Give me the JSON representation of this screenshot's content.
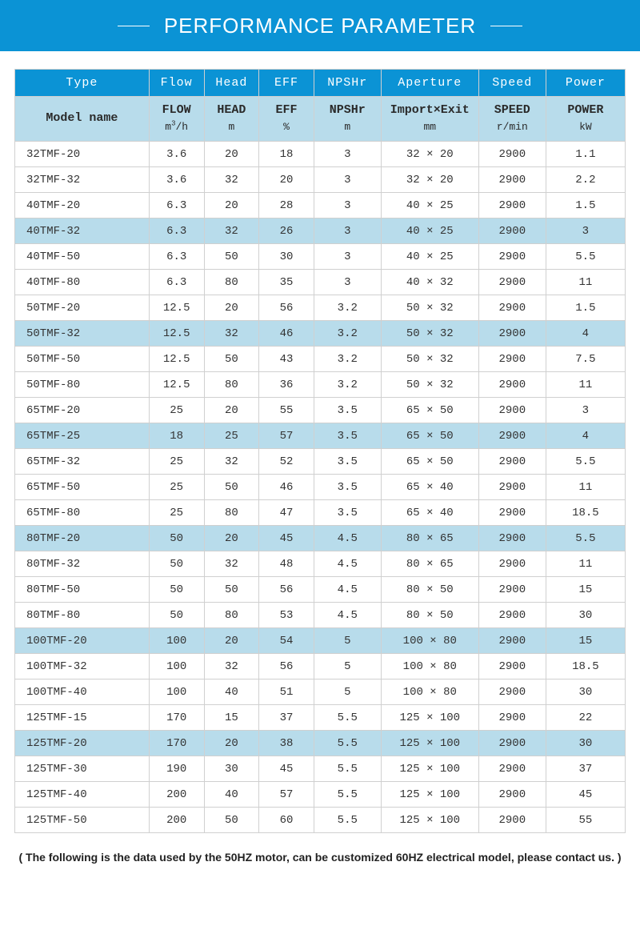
{
  "banner": {
    "title": "PERFORMANCE PARAMETER"
  },
  "table": {
    "header1": [
      "Type",
      "Flow",
      "Head",
      "EFF",
      "NPSHr",
      "Aperture",
      "Speed",
      "Power"
    ],
    "header2": {
      "model": "Model name",
      "flow_label": "FLOW",
      "flow_unit": "m³/h",
      "head_label": "HEAD",
      "head_unit": "m",
      "eff_label": "EFF",
      "eff_unit": "%",
      "npshr_label": "NPSHr",
      "npshr_unit": "m",
      "ap_label": "Import×Exit",
      "ap_unit": "mm",
      "speed_label": "SPEED",
      "speed_unit": "r/min",
      "power_label": "POWER",
      "power_unit": "kW"
    },
    "rows": [
      {
        "model": "32TMF-20",
        "flow": "3.6",
        "head": "20",
        "eff": "18",
        "npshr": "3",
        "ap": "32 × 20",
        "speed": "2900",
        "power": "1.1",
        "hl": false
      },
      {
        "model": "32TMF-32",
        "flow": "3.6",
        "head": "32",
        "eff": "20",
        "npshr": "3",
        "ap": "32 × 20",
        "speed": "2900",
        "power": "2.2",
        "hl": false
      },
      {
        "model": "40TMF-20",
        "flow": "6.3",
        "head": "20",
        "eff": "28",
        "npshr": "3",
        "ap": "40 × 25",
        "speed": "2900",
        "power": "1.5",
        "hl": false
      },
      {
        "model": "40TMF-32",
        "flow": "6.3",
        "head": "32",
        "eff": "26",
        "npshr": "3",
        "ap": "40 × 25",
        "speed": "2900",
        "power": "3",
        "hl": true
      },
      {
        "model": "40TMF-50",
        "flow": "6.3",
        "head": "50",
        "eff": "30",
        "npshr": "3",
        "ap": "40 × 25",
        "speed": "2900",
        "power": "5.5",
        "hl": false
      },
      {
        "model": "40TMF-80",
        "flow": "6.3",
        "head": "80",
        "eff": "35",
        "npshr": "3",
        "ap": "40 × 32",
        "speed": "2900",
        "power": "11",
        "hl": false
      },
      {
        "model": "50TMF-20",
        "flow": "12.5",
        "head": "20",
        "eff": "56",
        "npshr": "3.2",
        "ap": "50 × 32",
        "speed": "2900",
        "power": "1.5",
        "hl": false
      },
      {
        "model": "50TMF-32",
        "flow": "12.5",
        "head": "32",
        "eff": "46",
        "npshr": "3.2",
        "ap": "50 × 32",
        "speed": "2900",
        "power": "4",
        "hl": true
      },
      {
        "model": "50TMF-50",
        "flow": "12.5",
        "head": "50",
        "eff": "43",
        "npshr": "3.2",
        "ap": "50 × 32",
        "speed": "2900",
        "power": "7.5",
        "hl": false
      },
      {
        "model": "50TMF-80",
        "flow": "12.5",
        "head": "80",
        "eff": "36",
        "npshr": "3.2",
        "ap": "50 × 32",
        "speed": "2900",
        "power": "11",
        "hl": false
      },
      {
        "model": "65TMF-20",
        "flow": "25",
        "head": "20",
        "eff": "55",
        "npshr": "3.5",
        "ap": "65 × 50",
        "speed": "2900",
        "power": "3",
        "hl": false
      },
      {
        "model": "65TMF-25",
        "flow": "18",
        "head": "25",
        "eff": "57",
        "npshr": "3.5",
        "ap": "65 × 50",
        "speed": "2900",
        "power": "4",
        "hl": true
      },
      {
        "model": "65TMF-32",
        "flow": "25",
        "head": "32",
        "eff": "52",
        "npshr": "3.5",
        "ap": "65 × 50",
        "speed": "2900",
        "power": "5.5",
        "hl": false
      },
      {
        "model": "65TMF-50",
        "flow": "25",
        "head": "50",
        "eff": "46",
        "npshr": "3.5",
        "ap": "65 × 40",
        "speed": "2900",
        "power": "11",
        "hl": false
      },
      {
        "model": "65TMF-80",
        "flow": "25",
        "head": "80",
        "eff": "47",
        "npshr": "3.5",
        "ap": "65 × 40",
        "speed": "2900",
        "power": "18.5",
        "hl": false
      },
      {
        "model": "80TMF-20",
        "flow": "50",
        "head": "20",
        "eff": "45",
        "npshr": "4.5",
        "ap": "80 × 65",
        "speed": "2900",
        "power": "5.5",
        "hl": true
      },
      {
        "model": "80TMF-32",
        "flow": "50",
        "head": "32",
        "eff": "48",
        "npshr": "4.5",
        "ap": "80 × 65",
        "speed": "2900",
        "power": "11",
        "hl": false
      },
      {
        "model": "80TMF-50",
        "flow": "50",
        "head": "50",
        "eff": "56",
        "npshr": "4.5",
        "ap": "80 × 50",
        "speed": "2900",
        "power": "15",
        "hl": false
      },
      {
        "model": "80TMF-80",
        "flow": "50",
        "head": "80",
        "eff": "53",
        "npshr": "4.5",
        "ap": "80 × 50",
        "speed": "2900",
        "power": "30",
        "hl": false
      },
      {
        "model": "100TMF-20",
        "flow": "100",
        "head": "20",
        "eff": "54",
        "npshr": "5",
        "ap": "100 × 80",
        "speed": "2900",
        "power": "15",
        "hl": true
      },
      {
        "model": "100TMF-32",
        "flow": "100",
        "head": "32",
        "eff": "56",
        "npshr": "5",
        "ap": "100 × 80",
        "speed": "2900",
        "power": "18.5",
        "hl": false
      },
      {
        "model": "100TMF-40",
        "flow": "100",
        "head": "40",
        "eff": "51",
        "npshr": "5",
        "ap": "100 × 80",
        "speed": "2900",
        "power": "30",
        "hl": false
      },
      {
        "model": "125TMF-15",
        "flow": "170",
        "head": "15",
        "eff": "37",
        "npshr": "5.5",
        "ap": "125 × 100",
        "speed": "2900",
        "power": "22",
        "hl": false
      },
      {
        "model": "125TMF-20",
        "flow": "170",
        "head": "20",
        "eff": "38",
        "npshr": "5.5",
        "ap": "125 × 100",
        "speed": "2900",
        "power": "30",
        "hl": true
      },
      {
        "model": "125TMF-30",
        "flow": "190",
        "head": "30",
        "eff": "45",
        "npshr": "5.5",
        "ap": "125 × 100",
        "speed": "2900",
        "power": "37",
        "hl": false
      },
      {
        "model": "125TMF-40",
        "flow": "200",
        "head": "40",
        "eff": "57",
        "npshr": "5.5",
        "ap": "125 × 100",
        "speed": "2900",
        "power": "45",
        "hl": false
      },
      {
        "model": "125TMF-50",
        "flow": "200",
        "head": "50",
        "eff": "60",
        "npshr": "5.5",
        "ap": "125 × 100",
        "speed": "2900",
        "power": "55",
        "hl": false
      }
    ]
  },
  "footnote": "( The following is the data used by the 50HZ motor, can be customized 60HZ electrical model, please contact us. )",
  "colors": {
    "banner_bg": "#0b93d5",
    "banner_text": "#ffffff",
    "header2_bg": "#b8dceb",
    "highlight_bg": "#b8dceb",
    "border": "#d0d0d0",
    "text": "#333333"
  }
}
